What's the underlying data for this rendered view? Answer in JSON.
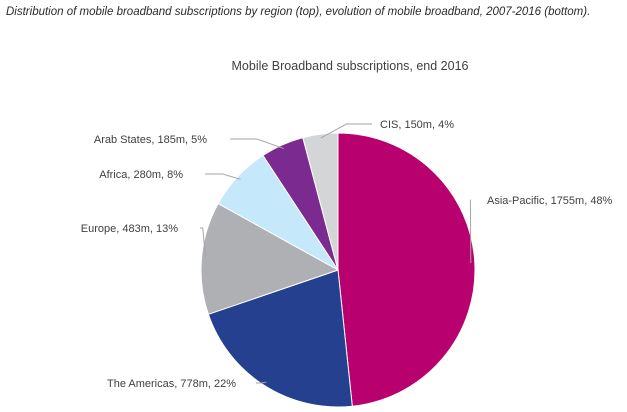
{
  "caption": "Distribution of mobile broadband subscriptions by region (top), evolution of mobile broadband, 2007-2016 (bottom).",
  "chart_data": {
    "type": "pie",
    "title": "Mobile Broadband subscriptions, end 2016",
    "start_angle_deg": 0,
    "direction": "clockwise",
    "unit": "m",
    "slices": [
      {
        "label": "Asia-Pacific, 1755m, 48%",
        "name": "Asia-Pacific",
        "value": 1755,
        "percent": 48,
        "color": "#b8006e"
      },
      {
        "label": "The Americas, 778m, 22%",
        "name": "The Americas",
        "value": 778,
        "percent": 22,
        "color": "#24408e"
      },
      {
        "label": "Europe, 483m, 13%",
        "name": "Europe",
        "value": 483,
        "percent": 13,
        "color": "#aeb0b3"
      },
      {
        "label": "Africa, 280m, 8%",
        "name": "Africa",
        "value": 280,
        "percent": 8,
        "color": "#c5e8fb"
      },
      {
        "label": "Arab States, 185m, 5%",
        "name": "Arab States",
        "value": 185,
        "percent": 5,
        "color": "#7b2a8f"
      },
      {
        "label": "CIS, 150m, 4%",
        "name": "CIS",
        "value": 150,
        "percent": 4,
        "color": "#d4d5d7"
      }
    ],
    "legend": "none"
  }
}
